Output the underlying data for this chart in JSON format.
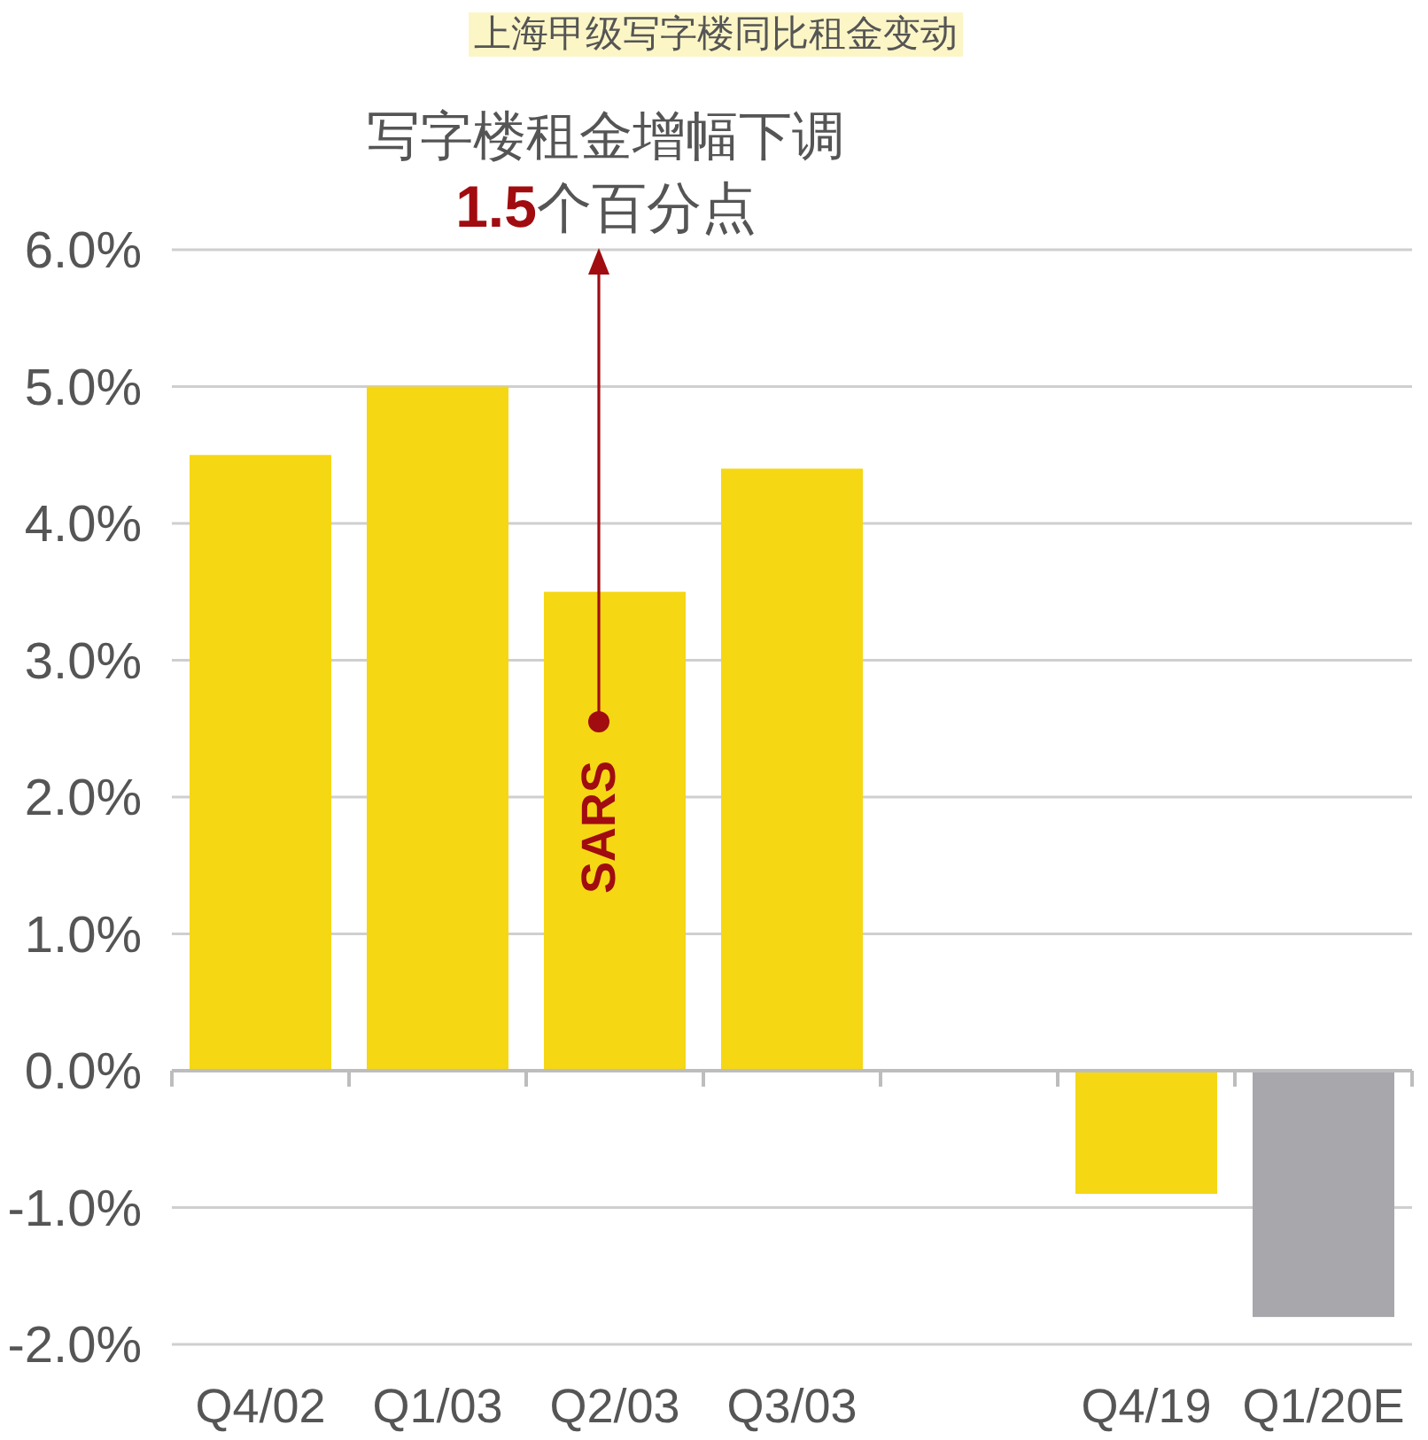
{
  "chart_data": {
    "type": "bar",
    "title": "上海甲级写字楼同比租金变动",
    "categories": [
      "Q4/02",
      "Q1/03",
      "Q2/03",
      "Q3/03",
      null,
      "Q4/19",
      "Q1/20E"
    ],
    "values": [
      4.5,
      5.0,
      3.5,
      4.4,
      null,
      -0.9,
      -1.8
    ],
    "colors": [
      "#f5d714",
      "#f5d714",
      "#f5d714",
      "#f5d714",
      null,
      "#f5d714",
      "#a8a7ab"
    ],
    "ylim": [
      -2,
      6
    ],
    "yticks": [
      {
        "value": -2,
        "label": "-2.0%"
      },
      {
        "value": -1,
        "label": "-1.0%"
      },
      {
        "value": 0,
        "label": "0.0%"
      },
      {
        "value": 1,
        "label": "1.0%"
      },
      {
        "value": 2,
        "label": "2.0%"
      },
      {
        "value": 3,
        "label": "3.0%"
      },
      {
        "value": 4,
        "label": "4.0%"
      },
      {
        "value": 5,
        "label": "5.0%"
      },
      {
        "value": 6,
        "label": "6.0%"
      }
    ],
    "grid": "y",
    "annotations": [
      "SARS",
      "写字楼租金增幅下调",
      "1.5",
      "个百分点"
    ]
  }
}
